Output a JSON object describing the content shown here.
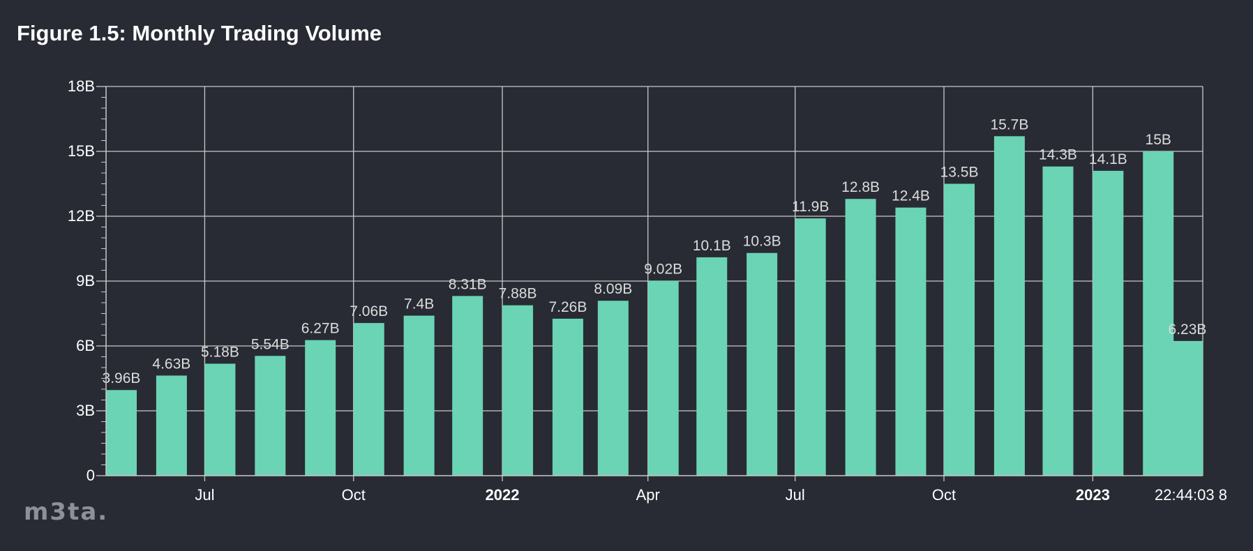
{
  "title": "Figure 1.5: Monthly Trading Volume",
  "logo_text": "m3ta.",
  "colors": {
    "background": "#282b34",
    "bar": "#6bd4b4",
    "grid": "#c9c9c9",
    "axis_text": "#ffffff",
    "value_label": "#dcdcdc"
  },
  "chart_data": {
    "type": "bar",
    "title": "Figure 1.5: Monthly Trading Volume",
    "xlabel": "",
    "ylabel": "",
    "ylim": [
      0,
      18000000000
    ],
    "yticks": [
      0,
      3000000000,
      6000000000,
      9000000000,
      12000000000,
      15000000000,
      18000000000
    ],
    "ytick_labels": [
      "0",
      "3B",
      "6B",
      "9B",
      "12B",
      "15B",
      "18B"
    ],
    "categories": [
      "2021-05",
      "2021-06",
      "2021-07",
      "2021-08",
      "2021-09",
      "2021-10",
      "2021-11",
      "2021-12",
      "2022-01",
      "2022-02",
      "2022-03",
      "2022-04",
      "2022-05",
      "2022-06",
      "2022-07",
      "2022-08",
      "2022-09",
      "2022-10",
      "2022-11",
      "2022-12",
      "2023-01",
      "2023-02",
      "2023-03"
    ],
    "values": [
      3960000000,
      4630000000,
      5180000000,
      5540000000,
      6270000000,
      7060000000,
      7400000000,
      8310000000,
      7880000000,
      7260000000,
      8090000000,
      9020000000,
      10100000000,
      10300000000,
      11900000000,
      12800000000,
      12400000000,
      13500000000,
      15700000000,
      14300000000,
      14100000000,
      15000000000,
      6230000000
    ],
    "value_labels": [
      "3.96B",
      "4.63B",
      "5.18B",
      "5.54B",
      "6.27B",
      "7.06B",
      "7.4B",
      "8.31B",
      "7.88B",
      "7.26B",
      "8.09B",
      "9.02B",
      "10.1B",
      "10.3B",
      "11.9B",
      "12.8B",
      "12.4B",
      "13.5B",
      "15.7B",
      "14.3B",
      "14.1B",
      "15B",
      "6.23B"
    ],
    "xticks": [
      {
        "label": "Jul",
        "bold": false,
        "date": "2021-07-01"
      },
      {
        "label": "Oct",
        "bold": false,
        "date": "2021-10-01"
      },
      {
        "label": "2022",
        "bold": true,
        "date": "2022-01-01"
      },
      {
        "label": "Apr",
        "bold": false,
        "date": "2022-04-01"
      },
      {
        "label": "Jul",
        "bold": false,
        "date": "2022-07-01"
      },
      {
        "label": "Oct",
        "bold": false,
        "date": "2022-10-01"
      },
      {
        "label": "2023",
        "bold": true,
        "date": "2023-01-01"
      }
    ],
    "xlim": [
      "2021-05-01",
      "2023-03-10"
    ],
    "end_label": "22:44:03 8",
    "grid": true,
    "legend": "none"
  }
}
